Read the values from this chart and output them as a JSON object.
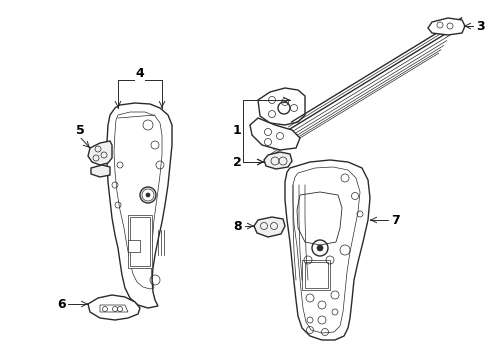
{
  "bg_color": "#ffffff",
  "line_color": "#2a2a2a",
  "label_color": "#000000",
  "figsize": [
    4.9,
    3.6
  ],
  "dpi": 100,
  "lw_main": 1.0,
  "lw_thin": 0.5,
  "lw_detail": 0.6
}
